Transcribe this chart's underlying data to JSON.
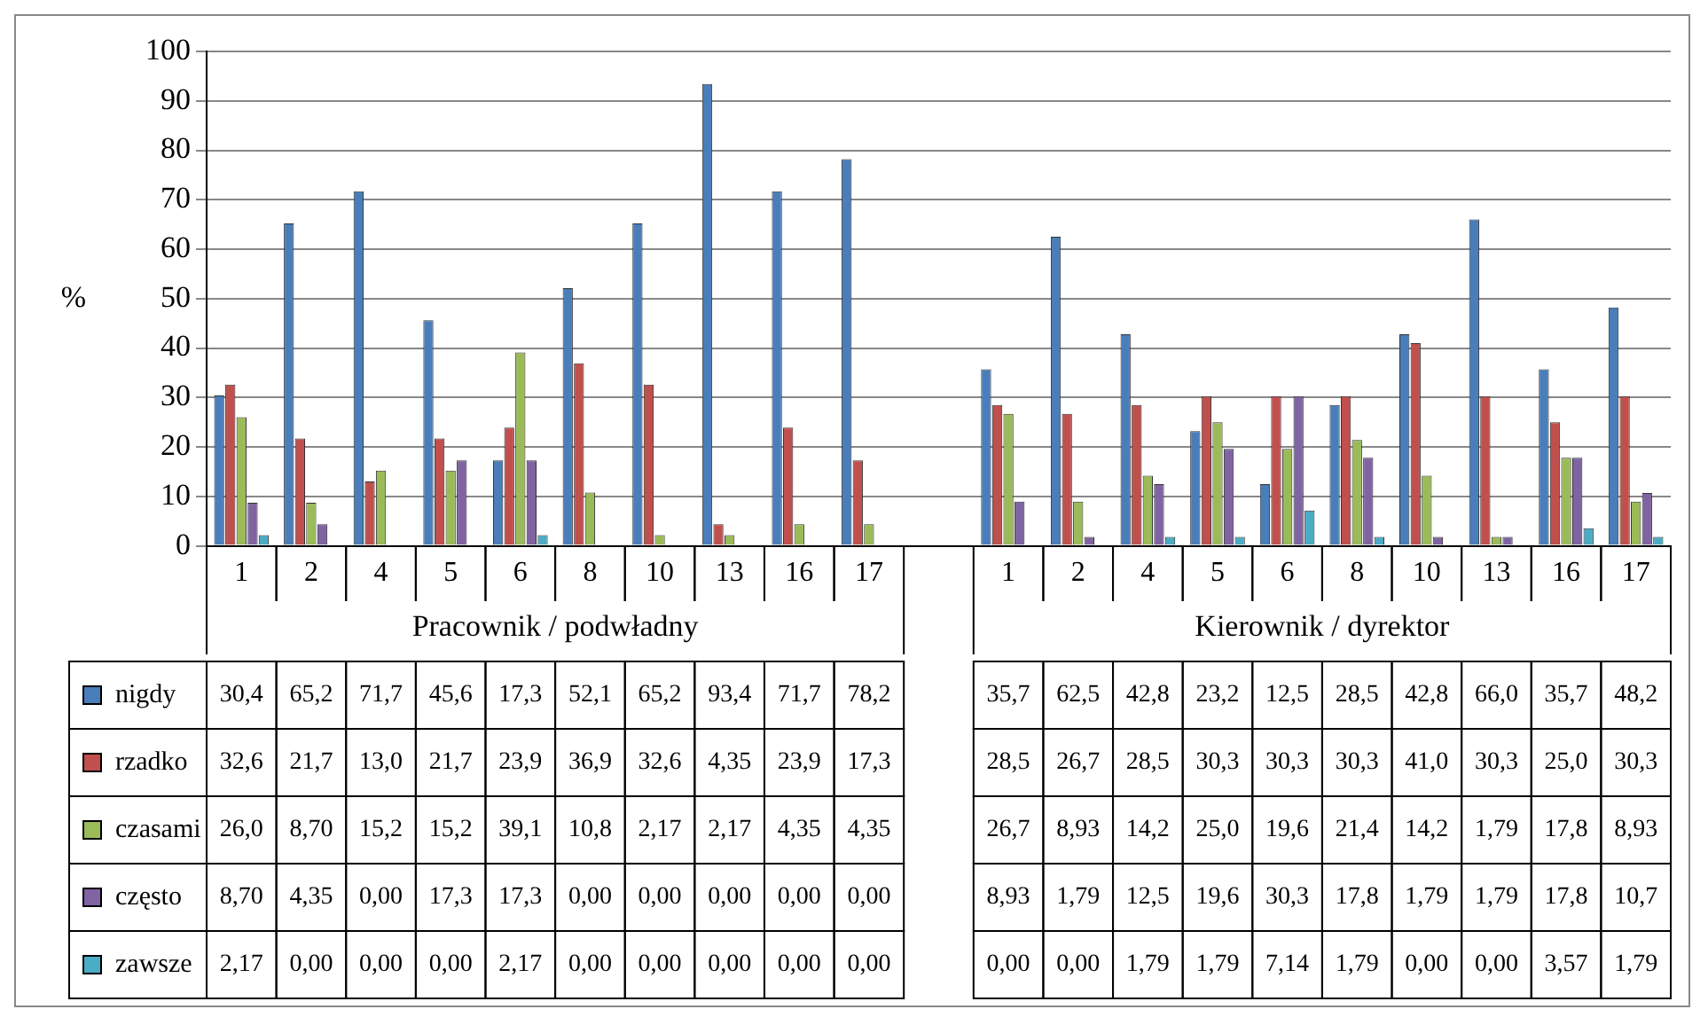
{
  "chart_data": {
    "type": "bar",
    "ylabel": "%",
    "categories": [
      "1",
      "2",
      "4",
      "5",
      "6",
      "8",
      "10",
      "13",
      "16",
      "17",
      null,
      "1",
      "2",
      "4",
      "5",
      "6",
      "8",
      "10",
      "13",
      "16",
      "17"
    ],
    "series": [
      {
        "name": "nigdy",
        "color": "#4a7ebb",
        "values": [
          30.4,
          65.2,
          71.7,
          45.6,
          17.3,
          52.1,
          65.2,
          93.4,
          71.7,
          78.2,
          null,
          35.7,
          62.5,
          42.8,
          23.2,
          12.5,
          28.5,
          42.8,
          66.0,
          35.7,
          48.2
        ],
        "value_labels": [
          "30,4",
          "65,2",
          "71,7",
          "45,6",
          "17,3",
          "52,1",
          "65,2",
          "93,4",
          "71,7",
          "78,2",
          null,
          "35,7",
          "62,5",
          "42,8",
          "23,2",
          "12,5",
          "28,5",
          "42,8",
          "66,0",
          "35,7",
          "48,2"
        ]
      },
      {
        "name": "rzadko",
        "color": "#c0504d",
        "values": [
          32.6,
          21.7,
          13.0,
          21.7,
          23.9,
          36.9,
          32.6,
          4.35,
          23.9,
          17.3,
          null,
          28.5,
          26.7,
          28.5,
          30.3,
          30.3,
          30.3,
          41.0,
          30.3,
          25.0,
          30.3
        ],
        "value_labels": [
          "32,6",
          "21,7",
          "13,0",
          "21,7",
          "23,9",
          "36,9",
          "32,6",
          "4,35",
          "23,9",
          "17,3",
          null,
          "28,5",
          "26,7",
          "28,5",
          "30,3",
          "30,3",
          "30,3",
          "41,0",
          "30,3",
          "25,0",
          "30,3"
        ]
      },
      {
        "name": "czasami",
        "color": "#9bbb59",
        "values": [
          26.0,
          8.7,
          15.2,
          15.2,
          39.1,
          10.8,
          2.17,
          2.17,
          4.35,
          4.35,
          null,
          26.7,
          8.93,
          14.2,
          25.0,
          19.6,
          21.4,
          14.2,
          1.79,
          17.8,
          8.93
        ],
        "value_labels": [
          "26,0",
          "8,70",
          "15,2",
          "15,2",
          "39,1",
          "10,8",
          "2,17",
          "2,17",
          "4,35",
          "4,35",
          null,
          "26,7",
          "8,93",
          "14,2",
          "25,0",
          "19,6",
          "21,4",
          "14,2",
          "1,79",
          "17,8",
          "8,93"
        ]
      },
      {
        "name": "często",
        "color": "#8064a2",
        "values": [
          8.7,
          4.35,
          0,
          17.3,
          17.3,
          0,
          0,
          0,
          0,
          0,
          null,
          8.93,
          1.79,
          12.5,
          19.6,
          30.3,
          17.8,
          1.79,
          1.79,
          17.8,
          10.7
        ],
        "value_labels": [
          "8,70",
          "4,35",
          "0,00",
          "17,3",
          "17,3",
          "0,00",
          "0,00",
          "0,00",
          "0,00",
          "0,00",
          null,
          "8,93",
          "1,79",
          "12,5",
          "19,6",
          "30,3",
          "17,8",
          "1,79",
          "1,79",
          "17,8",
          "10,7"
        ]
      },
      {
        "name": "zawsze",
        "color": "#4bacc6",
        "values": [
          2.17,
          0,
          0,
          0,
          2.17,
          0,
          0,
          0,
          0,
          0,
          null,
          0,
          0,
          1.79,
          1.79,
          7.14,
          1.79,
          0,
          0,
          3.57,
          1.79
        ],
        "value_labels": [
          "2,17",
          "0,00",
          "0,00",
          "0,00",
          "2,17",
          "0,00",
          "0,00",
          "0,00",
          "0,00",
          "0,00",
          null,
          "0,00",
          "0,00",
          "1,79",
          "1,79",
          "7,14",
          "1,79",
          "0,00",
          "0,00",
          "3,57",
          "1,79"
        ]
      }
    ],
    "annotations": [
      "Pracownik / podwładny",
      "Kierownik / dyrektor"
    ],
    "ylim": [
      0,
      100
    ],
    "yticks": [
      0,
      10,
      20,
      30,
      40,
      50,
      60,
      70,
      80,
      90,
      100
    ],
    "grid": "y",
    "legend": "bottom"
  }
}
